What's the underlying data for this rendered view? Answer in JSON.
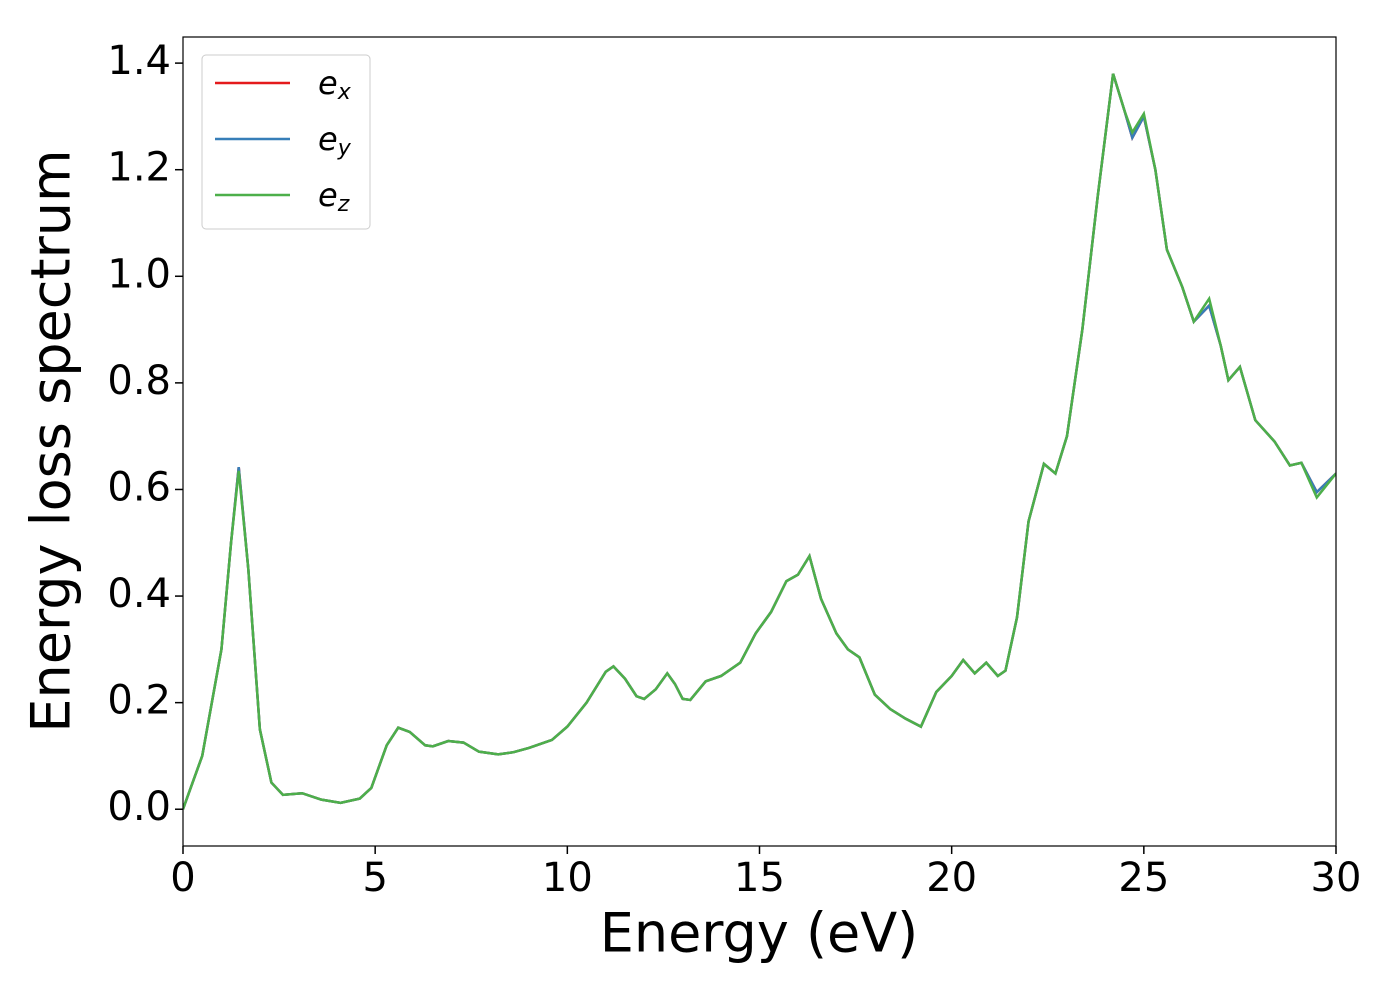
{
  "chart_data": {
    "type": "line",
    "x_label": "Energy (eV)",
    "y_label": "Energy loss spectrum",
    "x": [
      0,
      0.5,
      1.0,
      1.25,
      1.45,
      1.7,
      2.0,
      2.3,
      2.6,
      3.1,
      3.6,
      4.1,
      4.6,
      4.9,
      5.3,
      5.6,
      5.9,
      6.3,
      6.5,
      6.9,
      7.3,
      7.7,
      8.2,
      8.6,
      9.0,
      9.6,
      10.0,
      10.5,
      11.0,
      11.2,
      11.5,
      11.8,
      12.0,
      12.3,
      12.6,
      12.8,
      13.0,
      13.2,
      13.6,
      14.0,
      14.5,
      14.9,
      15.3,
      15.7,
      16.0,
      16.3,
      16.6,
      17.0,
      17.3,
      17.6,
      18.0,
      18.4,
      18.8,
      19.2,
      19.6,
      20.0,
      20.3,
      20.6,
      20.9,
      21.2,
      21.4,
      21.7,
      22.0,
      22.4,
      22.7,
      23.0,
      23.4,
      23.8,
      24.2,
      24.5,
      24.7,
      25.0,
      25.3,
      25.6,
      26.0,
      26.3,
      26.7,
      27.0,
      27.2,
      27.5,
      27.9,
      28.4,
      28.8,
      29.1,
      29.5,
      30.0
    ],
    "series": [
      {
        "name": "e_x",
        "color": "#e41a1c",
        "values": [
          0,
          0.1,
          0.3,
          0.5,
          0.642,
          0.45,
          0.15,
          0.05,
          0.027,
          0.03,
          0.018,
          0.012,
          0.02,
          0.04,
          0.12,
          0.153,
          0.145,
          0.12,
          0.118,
          0.128,
          0.125,
          0.108,
          0.103,
          0.107,
          0.115,
          0.13,
          0.155,
          0.2,
          0.258,
          0.268,
          0.245,
          0.212,
          0.207,
          0.225,
          0.255,
          0.235,
          0.207,
          0.205,
          0.24,
          0.25,
          0.275,
          0.33,
          0.37,
          0.428,
          0.44,
          0.475,
          0.395,
          0.33,
          0.3,
          0.285,
          0.215,
          0.188,
          0.17,
          0.155,
          0.22,
          0.25,
          0.28,
          0.255,
          0.275,
          0.25,
          0.26,
          0.36,
          0.54,
          0.648,
          0.63,
          0.7,
          0.9,
          1.15,
          1.38,
          1.31,
          1.26,
          1.3,
          1.2,
          1.05,
          0.98,
          0.915,
          0.945,
          0.87,
          0.805,
          0.83,
          0.73,
          0.69,
          0.645,
          0.65,
          0.595,
          0.63
        ]
      },
      {
        "name": "e_y",
        "color": "#377eb8",
        "values": [
          0,
          0.1,
          0.3,
          0.5,
          0.642,
          0.45,
          0.15,
          0.05,
          0.027,
          0.03,
          0.018,
          0.012,
          0.02,
          0.04,
          0.12,
          0.153,
          0.145,
          0.12,
          0.118,
          0.128,
          0.125,
          0.108,
          0.103,
          0.107,
          0.115,
          0.13,
          0.155,
          0.2,
          0.258,
          0.268,
          0.245,
          0.212,
          0.207,
          0.225,
          0.255,
          0.235,
          0.207,
          0.205,
          0.24,
          0.25,
          0.275,
          0.33,
          0.37,
          0.428,
          0.44,
          0.475,
          0.395,
          0.33,
          0.3,
          0.285,
          0.215,
          0.188,
          0.17,
          0.155,
          0.22,
          0.25,
          0.28,
          0.255,
          0.275,
          0.25,
          0.26,
          0.36,
          0.54,
          0.648,
          0.63,
          0.7,
          0.9,
          1.15,
          1.38,
          1.31,
          1.26,
          1.3,
          1.2,
          1.05,
          0.98,
          0.915,
          0.945,
          0.87,
          0.805,
          0.83,
          0.73,
          0.69,
          0.645,
          0.65,
          0.595,
          0.63
        ]
      },
      {
        "name": "e_z",
        "color": "#4daf4a",
        "values": [
          0,
          0.1,
          0.3,
          0.5,
          0.635,
          0.45,
          0.15,
          0.05,
          0.027,
          0.03,
          0.018,
          0.012,
          0.02,
          0.04,
          0.12,
          0.153,
          0.145,
          0.12,
          0.118,
          0.128,
          0.125,
          0.108,
          0.103,
          0.107,
          0.115,
          0.13,
          0.155,
          0.2,
          0.258,
          0.268,
          0.245,
          0.212,
          0.207,
          0.225,
          0.255,
          0.235,
          0.207,
          0.205,
          0.24,
          0.25,
          0.275,
          0.33,
          0.37,
          0.428,
          0.44,
          0.475,
          0.395,
          0.33,
          0.3,
          0.285,
          0.215,
          0.188,
          0.17,
          0.155,
          0.22,
          0.25,
          0.28,
          0.255,
          0.275,
          0.25,
          0.26,
          0.36,
          0.54,
          0.648,
          0.63,
          0.7,
          0.9,
          1.15,
          1.38,
          1.31,
          1.27,
          1.305,
          1.2,
          1.05,
          0.98,
          0.915,
          0.958,
          0.87,
          0.805,
          0.83,
          0.73,
          0.69,
          0.645,
          0.65,
          0.585,
          0.63
        ]
      }
    ],
    "xlim": [
      0,
      30
    ],
    "xticks": [
      0,
      5,
      10,
      15,
      20,
      25,
      30
    ],
    "ylim": [
      -0.069,
      1.449
    ],
    "yticks": [
      {
        "value": 0,
        "label": "0.0"
      },
      {
        "value": 0.2,
        "label": "0.2"
      },
      {
        "value": 0.4,
        "label": "0.4"
      },
      {
        "value": 0.6,
        "label": "0.6"
      },
      {
        "value": 0.8,
        "label": "0.8"
      },
      {
        "value": 1.0,
        "label": "1.0"
      },
      {
        "value": 1.2,
        "label": "1.2"
      },
      {
        "value": 1.4,
        "label": "1.4"
      }
    ],
    "grid": false,
    "legend": "upper left"
  }
}
